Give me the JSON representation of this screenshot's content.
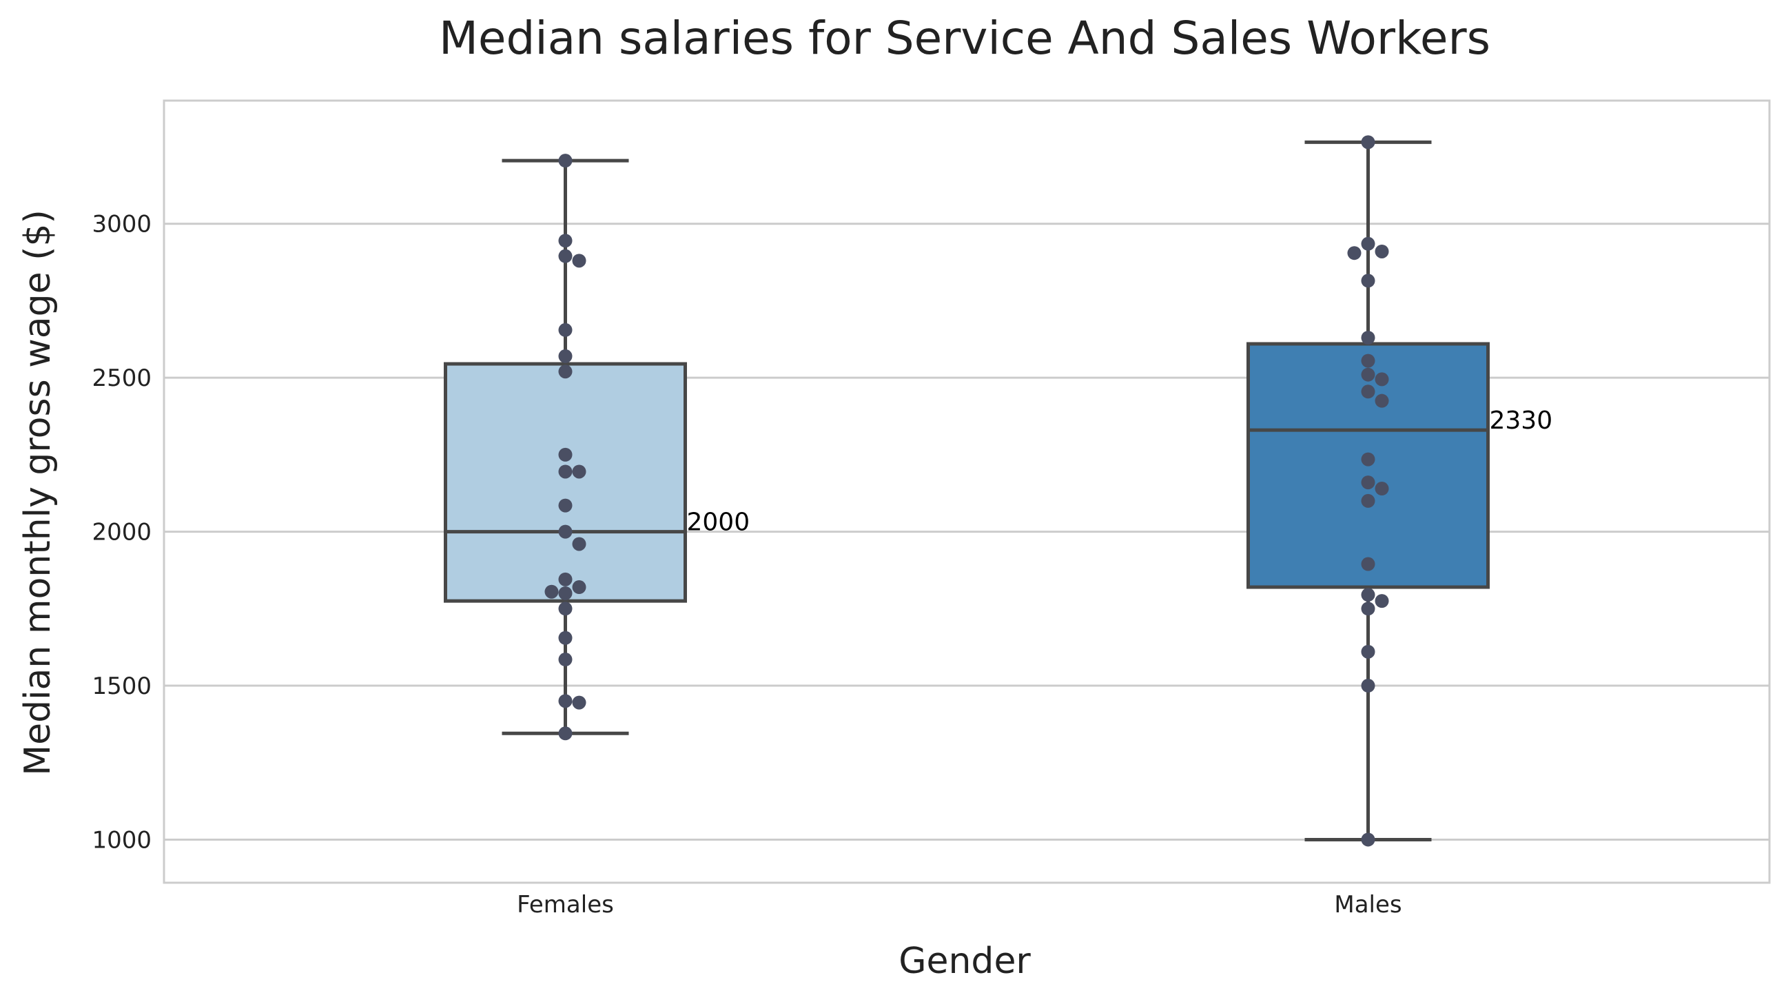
{
  "chart_data": {
    "type": "box",
    "title": "Median salaries for Service And Sales Workers",
    "xlabel": "Gender",
    "ylabel": "Median monthly gross wage ($)",
    "ylim": [
      860,
      3400
    ],
    "yticks": [
      1000,
      1500,
      2000,
      2500,
      3000
    ],
    "ytick_labels": [
      "1000",
      "1500",
      "2000",
      "2500",
      "3000"
    ],
    "grid": true,
    "categories": [
      "Females",
      "Males"
    ],
    "boxes": [
      {
        "category": "Females",
        "color": "#b0cde1",
        "whisker_low": 1345,
        "q1": 1775,
        "median": 2000,
        "q3": 2545,
        "whisker_high": 3205,
        "median_label": "2000",
        "points": [
          3205,
          2945,
          2895,
          2880,
          2655,
          2570,
          2520,
          2250,
          2195,
          2195,
          2085,
          2000,
          1960,
          1845,
          1820,
          1805,
          1800,
          1750,
          1655,
          1585,
          1450,
          1445,
          1345
        ]
      },
      {
        "category": "Males",
        "color": "#3f7fb2",
        "whisker_low": 1000,
        "q1": 1820,
        "median": 2330,
        "q3": 2610,
        "whisker_high": 3265,
        "median_label": "2330",
        "points": [
          3265,
          2935,
          2910,
          2905,
          2815,
          2630,
          2555,
          2510,
          2495,
          2455,
          2425,
          2235,
          2160,
          2140,
          2100,
          1895,
          1795,
          1775,
          1750,
          1610,
          1500,
          1000
        ]
      }
    ],
    "point_color": "#4a4f63",
    "line_color": "#474747",
    "grid_color": "#cccccc",
    "frame_color": "#cccccc"
  }
}
